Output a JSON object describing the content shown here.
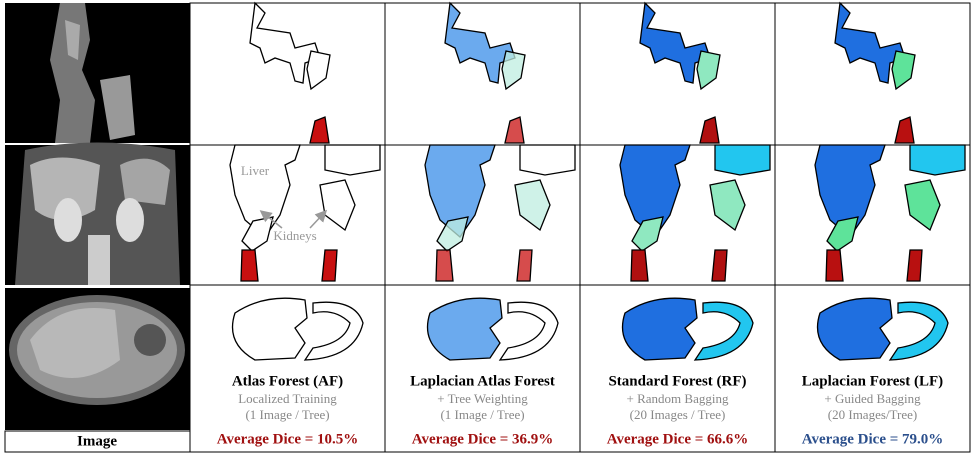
{
  "image_column": {
    "label": "Image"
  },
  "methods": [
    {
      "title": "Atlas Forest (AF)",
      "lines": [
        "Localized Training",
        "(1 Image / Tree)"
      ],
      "dice": "Average Dice = 10.5%"
    },
    {
      "title": "Laplacian Atlas Forest",
      "lines": [
        "+ Tree Weighting",
        "(1 Image / Tree)"
      ],
      "dice": "Average Dice = 36.9%"
    },
    {
      "title": "Standard Forest (RF)",
      "lines": [
        "+ Random Bagging",
        "(20 Images / Tree)"
      ],
      "dice": "Average Dice = 66.6%"
    },
    {
      "title": "Laplacian Forest (LF)",
      "lines": [
        "+ Guided Bagging",
        "(20 Images/Tree)"
      ],
      "dice": "Average Dice = 79.0%"
    }
  ],
  "annotations": {
    "liver": "Liver",
    "kidneys": "Kidneys"
  }
}
